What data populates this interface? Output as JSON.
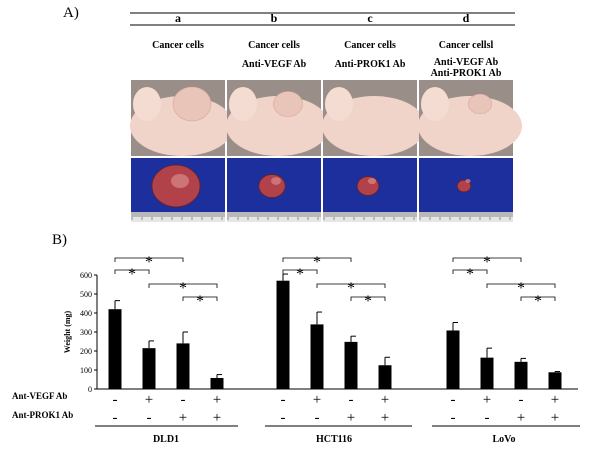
{
  "panel_a": {
    "label": "A)",
    "columns": [
      {
        "letter": "a",
        "caption": [
          "Cancer cells"
        ]
      },
      {
        "letter": "b",
        "caption": [
          "Cancer cells",
          "Anti-VEGF Ab"
        ]
      },
      {
        "letter": "c",
        "caption": [
          "Cancer cells",
          "Anti-PROK1 Ab"
        ]
      },
      {
        "letter": "d",
        "caption": [
          "Cancer cellsl",
          "Anti-VEGF Ab",
          "Anti-PROK1 Ab"
        ]
      }
    ],
    "colors": {
      "mouse_bg": "#9a8f88",
      "skin": "#f0d3c9",
      "tumor_bg": "#1d2f9c",
      "tumor": "#b2424a"
    },
    "tumor_size_fraction": [
      1.0,
      0.55,
      0.45,
      0.28
    ]
  },
  "panel_b": {
    "label": "B)",
    "treatment_labels": [
      "Ant-VEGF  Ab",
      "Ant-PROK1  Ab"
    ],
    "significance_symbol": "*",
    "colors": {
      "bar": "#000000"
    },
    "chart_data": {
      "type": "bar",
      "ylabel": "Weight (mg)",
      "ylim": [
        0,
        600
      ],
      "yticks": [
        0,
        100,
        200,
        300,
        400,
        500,
        600
      ],
      "groups": [
        {
          "name": "DLD1",
          "values": [
            420,
            215,
            240,
            58
          ],
          "errors": [
            45,
            38,
            60,
            18
          ],
          "vegf": [
            "-",
            "+",
            "-",
            "+"
          ],
          "prok1": [
            "-",
            "-",
            "+",
            "+"
          ]
        },
        {
          "name": "HCT116",
          "values": [
            570,
            340,
            248,
            125
          ],
          "errors": [
            35,
            65,
            30,
            42
          ],
          "vegf": [
            "-",
            "+",
            "-",
            "+"
          ],
          "prok1": [
            "-",
            "-",
            "+",
            "+"
          ]
        },
        {
          "name": "LoVo",
          "values": [
            308,
            165,
            143,
            88
          ],
          "errors": [
            42,
            50,
            18,
            4
          ],
          "vegf": [
            "-",
            "+",
            "-",
            "+"
          ],
          "prok1": [
            "-",
            "-",
            "+",
            "+"
          ]
        }
      ]
    }
  }
}
